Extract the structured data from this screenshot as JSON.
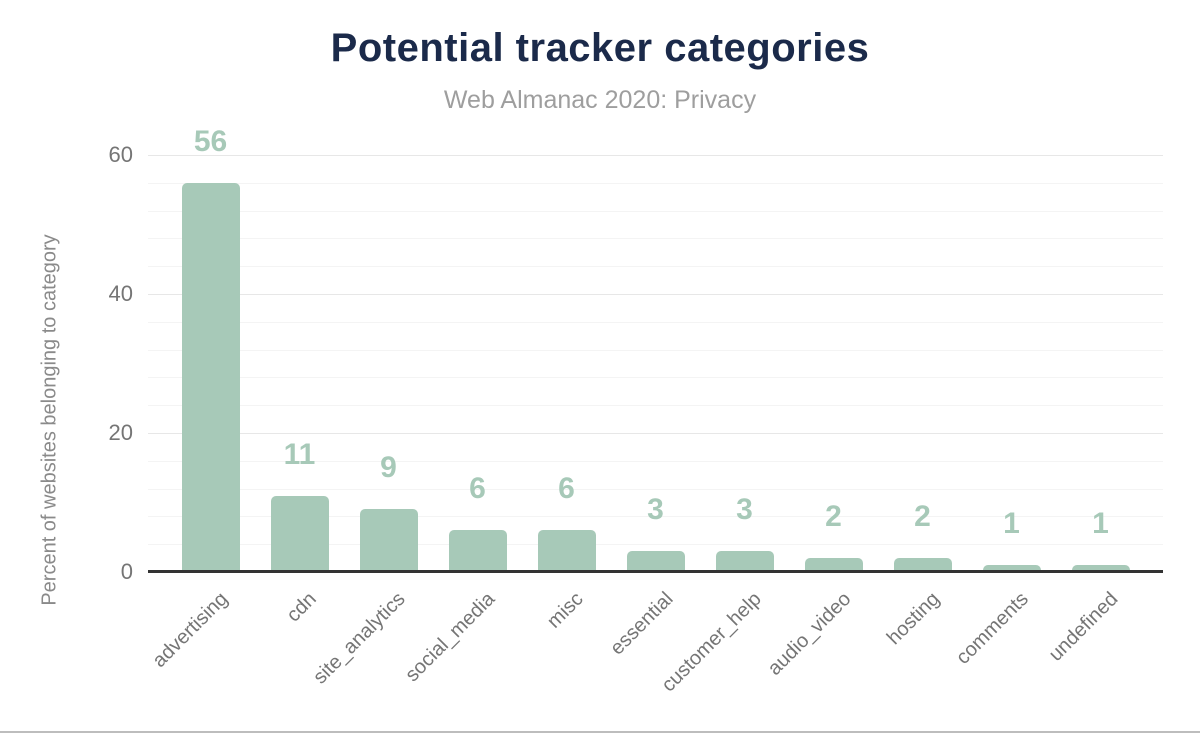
{
  "chart_data": {
    "type": "bar",
    "title": "Potential tracker categories",
    "subtitle": "Web Almanac 2020: Privacy",
    "xlabel": "",
    "ylabel": "Percent of websites belonging to category",
    "categories": [
      "advertising",
      "cdn",
      "site_analytics",
      "social_media",
      "misc",
      "essential",
      "customer_help",
      "audio_video",
      "hosting",
      "comments",
      "undefined"
    ],
    "values": [
      56,
      11,
      9,
      6,
      6,
      3,
      3,
      2,
      2,
      1,
      1
    ],
    "yticks": [
      0,
      20,
      40,
      60
    ],
    "ylim": [
      0,
      60
    ],
    "minor_grid_step": 4,
    "grid": true,
    "legend": "none",
    "colors": {
      "bar": "#a7c9b8",
      "value_label": "#a7c9b8",
      "title": "#1b2a4a",
      "subtitle": "#9e9e9e",
      "axis_line": "#333333",
      "tick_label": "#757575"
    }
  }
}
